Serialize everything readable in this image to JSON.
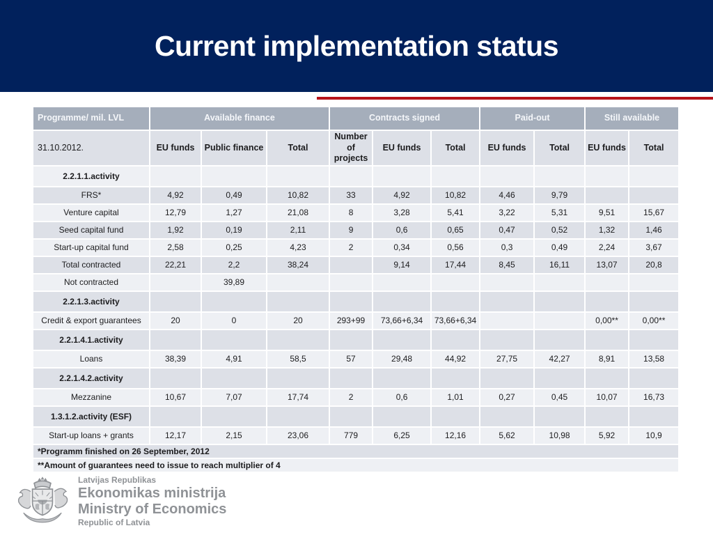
{
  "slide": {
    "title": "Current implementation status"
  },
  "colors": {
    "navy": "#01215c",
    "red": "#b8131a",
    "header_band": "#a5aebb",
    "row_gray": "#dde0e7",
    "row_light": "#eef0f4",
    "logo_gray": "#8f9296"
  },
  "table": {
    "group_headers": [
      {
        "label": "Programme/ mil. LVL",
        "colspan": 1
      },
      {
        "label": "Available finance",
        "colspan": 3
      },
      {
        "label": "Contracts signed",
        "colspan": 3
      },
      {
        "label": "Paid-out",
        "colspan": 2
      },
      {
        "label": "Still available",
        "colspan": 2
      }
    ],
    "sub_headers": [
      "31.10.2012.",
      "EU funds",
      "Public finance",
      "Total",
      "Number of projects",
      "EU funds",
      "Total",
      "EU funds",
      "Total",
      "EU funds",
      "Total"
    ],
    "rows": [
      {
        "type": "section",
        "label": "2.2.1.1.activity",
        "cells": [
          "",
          "",
          "",
          "",
          "",
          "",
          "",
          "",
          "",
          ""
        ]
      },
      {
        "type": "data",
        "label": "FRS*",
        "cells": [
          "4,92",
          "0,49",
          "10,82",
          "33",
          "4,92",
          "10,82",
          "4,46",
          "9,79",
          "",
          ""
        ]
      },
      {
        "type": "data",
        "label": "Venture capital",
        "cells": [
          "12,79",
          "1,27",
          "21,08",
          "8",
          "3,28",
          "5,41",
          "3,22",
          "5,31",
          "9,51",
          "15,67"
        ]
      },
      {
        "type": "data",
        "label": "Seed capital fund",
        "cells": [
          "1,92",
          "0,19",
          "2,11",
          "9",
          "0,6",
          "0,65",
          "0,47",
          "0,52",
          "1,32",
          "1,46"
        ]
      },
      {
        "type": "data",
        "label": "Start-up capital fund",
        "cells": [
          "2,58",
          "0,25",
          "4,23",
          "2",
          "0,34",
          "0,56",
          "0,3",
          "0,49",
          "2,24",
          "3,67"
        ]
      },
      {
        "type": "data",
        "label": "Total contracted",
        "cells": [
          "22,21",
          "2,2",
          "38,24",
          "",
          "9,14",
          "17,44",
          "8,45",
          "16,11",
          "13,07",
          "20,8"
        ]
      },
      {
        "type": "data",
        "label": "Not contracted",
        "cells": [
          "",
          "39,89",
          "",
          "",
          "",
          "",
          "",
          "",
          "",
          ""
        ]
      },
      {
        "type": "section",
        "label": "2.2.1.3.activity",
        "cells": [
          "",
          "",
          "",
          "",
          "",
          "",
          "",
          "",
          "",
          ""
        ]
      },
      {
        "type": "data",
        "label": "Credit & export guarantees",
        "cells": [
          "20",
          "0",
          "20",
          "293+99",
          "73,66+6,34",
          "73,66+6,34",
          "",
          "",
          "0,00**",
          "0,00**"
        ]
      },
      {
        "type": "section",
        "label": "2.2.1.4.1.activity",
        "cells": [
          "",
          "",
          "",
          "",
          "",
          "",
          "",
          "",
          "",
          ""
        ]
      },
      {
        "type": "data",
        "label": "Loans",
        "cells": [
          "38,39",
          "4,91",
          "58,5",
          "57",
          "29,48",
          "44,92",
          "27,75",
          "42,27",
          "8,91",
          "13,58"
        ]
      },
      {
        "type": "section",
        "label": "2.2.1.4.2.activity",
        "cells": [
          "",
          "",
          "",
          "",
          "",
          "",
          "",
          "",
          "",
          ""
        ]
      },
      {
        "type": "data",
        "label": "Mezzanine",
        "cells": [
          "10,67",
          "7,07",
          "17,74",
          "2",
          "0,6",
          "1,01",
          "0,27",
          "0,45",
          "10,07",
          "16,73"
        ]
      },
      {
        "type": "section",
        "label": "1.3.1.2.activity (ESF)",
        "cells": [
          "",
          "",
          "",
          "",
          "",
          "",
          "",
          "",
          "",
          ""
        ]
      },
      {
        "type": "data",
        "label": "Start-up loans + grants",
        "cells": [
          "12,17",
          "2,15",
          "23,06",
          "779",
          "6,25",
          "12,16",
          "5,62",
          "10,98",
          "5,92",
          "10,9"
        ]
      }
    ],
    "footnotes": [
      "*Programm finished on 26 September, 2012",
      "**Amount of guarantees need to issue to reach multiplier of 4"
    ]
  },
  "logo": {
    "line1": "Latvijas Republikas",
    "line2": "Ekonomikas ministrija",
    "line3": "Ministry of Economics",
    "line4": "Republic of Latvia"
  }
}
